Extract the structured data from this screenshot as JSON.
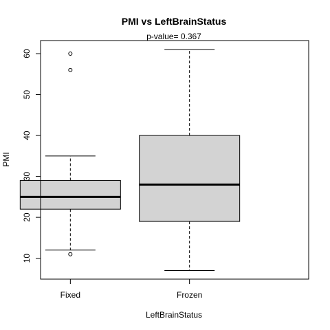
{
  "chart_data": {
    "type": "boxplot",
    "title": "PMI  vs  LeftBrainStatus",
    "subtitle": "p-value= 0.367",
    "xlabel": "LeftBrainStatus",
    "ylabel": "PMI",
    "ylim": [
      4.9,
      63.2
    ],
    "yticks": [
      10,
      20,
      30,
      40,
      50,
      60
    ],
    "grid": false,
    "legend": "none",
    "box_fill": "#d3d3d3",
    "categories": [
      "Fixed",
      "Frozen"
    ],
    "boxes": [
      {
        "category": "Fixed",
        "whisker_low": 12,
        "q1": 22,
        "median": 25,
        "q3": 29,
        "whisker_high": 35,
        "outliers": [
          11,
          56,
          60
        ]
      },
      {
        "category": "Frozen",
        "whisker_low": 7,
        "q1": 19,
        "median": 28,
        "q3": 40,
        "whisker_high": 61,
        "outliers": []
      }
    ]
  }
}
